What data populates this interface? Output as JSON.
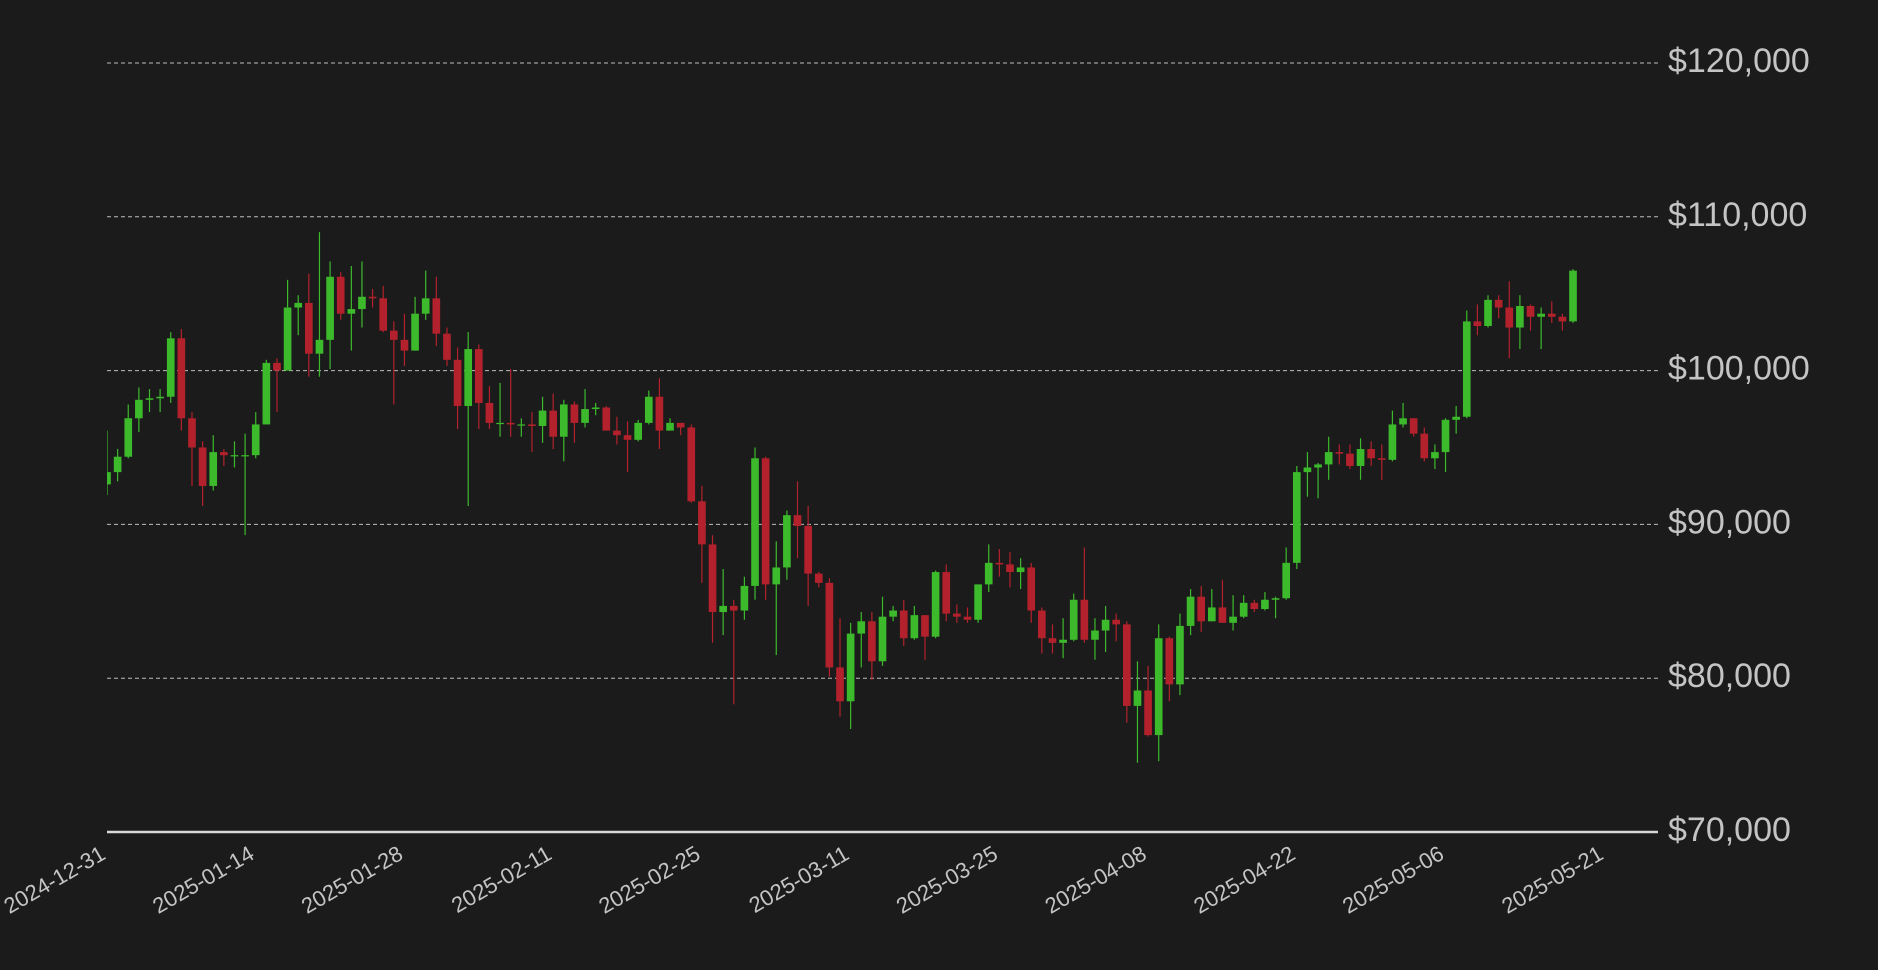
{
  "chart_data": {
    "type": "candlestick",
    "x": [
      "2024-12-31",
      "2025-01-01",
      "2025-01-02",
      "2025-01-03",
      "2025-01-04",
      "2025-01-05",
      "2025-01-06",
      "2025-01-07",
      "2025-01-08",
      "2025-01-09",
      "2025-01-10",
      "2025-01-11",
      "2025-01-12",
      "2025-01-13",
      "2025-01-14",
      "2025-01-15",
      "2025-01-16",
      "2025-01-17",
      "2025-01-18",
      "2025-01-19",
      "2025-01-20",
      "2025-01-21",
      "2025-01-22",
      "2025-01-23",
      "2025-01-24",
      "2025-01-25",
      "2025-01-26",
      "2025-01-27",
      "2025-01-28",
      "2025-01-29",
      "2025-01-30",
      "2025-01-31",
      "2025-02-01",
      "2025-02-02",
      "2025-02-03",
      "2025-02-04",
      "2025-02-05",
      "2025-02-06",
      "2025-02-07",
      "2025-02-08",
      "2025-02-09",
      "2025-02-10",
      "2025-02-11",
      "2025-02-12",
      "2025-02-13",
      "2025-02-14",
      "2025-02-15",
      "2025-02-16",
      "2025-02-17",
      "2025-02-18",
      "2025-02-19",
      "2025-02-20",
      "2025-02-21",
      "2025-02-22",
      "2025-02-23",
      "2025-02-24",
      "2025-02-25",
      "2025-02-26",
      "2025-02-27",
      "2025-02-28",
      "2025-03-01",
      "2025-03-02",
      "2025-03-03",
      "2025-03-04",
      "2025-03-05",
      "2025-03-06",
      "2025-03-07",
      "2025-03-08",
      "2025-03-09",
      "2025-03-10",
      "2025-03-11",
      "2025-03-12",
      "2025-03-13",
      "2025-03-14",
      "2025-03-15",
      "2025-03-16",
      "2025-03-17",
      "2025-03-18",
      "2025-03-19",
      "2025-03-20",
      "2025-03-21",
      "2025-03-22",
      "2025-03-23",
      "2025-03-24",
      "2025-03-25",
      "2025-03-26",
      "2025-03-27",
      "2025-03-28",
      "2025-03-29",
      "2025-03-30",
      "2025-03-31",
      "2025-04-01",
      "2025-04-02",
      "2025-04-03",
      "2025-04-04",
      "2025-04-05",
      "2025-04-06",
      "2025-04-07",
      "2025-04-08",
      "2025-04-09",
      "2025-04-10",
      "2025-04-11",
      "2025-04-12",
      "2025-04-13",
      "2025-04-14",
      "2025-04-15",
      "2025-04-16",
      "2025-04-17",
      "2025-04-18",
      "2025-04-19",
      "2025-04-20",
      "2025-04-21",
      "2025-04-22",
      "2025-04-23",
      "2025-04-24",
      "2025-04-25",
      "2025-04-26",
      "2025-04-27",
      "2025-04-28",
      "2025-04-29",
      "2025-04-30",
      "2025-05-01",
      "2025-05-02",
      "2025-05-03",
      "2025-05-04",
      "2025-05-05",
      "2025-05-06",
      "2025-05-07",
      "2025-05-08",
      "2025-05-09",
      "2025-05-10",
      "2025-05-11",
      "2025-05-12",
      "2025-05-13",
      "2025-05-14",
      "2025-05-15",
      "2025-05-16",
      "2025-05-17",
      "2025-05-18"
    ],
    "open": [
      92600,
      93400,
      94400,
      96900,
      98100,
      98200,
      98300,
      102100,
      96900,
      95000,
      92500,
      94700,
      94500,
      94500,
      94500,
      96500,
      100500,
      100000,
      104100,
      104400,
      101100,
      102000,
      106100,
      103700,
      104000,
      104800,
      104700,
      102600,
      102000,
      101300,
      103700,
      104700,
      102400,
      100700,
      97700,
      101400,
      97900,
      96600,
      96600,
      96500,
      96500,
      96400,
      97400,
      95700,
      97800,
      96600,
      97500,
      97600,
      96100,
      95800,
      95500,
      96600,
      98300,
      96100,
      96600,
      96300,
      91500,
      88700,
      84300,
      84700,
      84400,
      86000,
      94300,
      86100,
      87200,
      90600,
      89900,
      86800,
      86200,
      80700,
      78500,
      82900,
      83700,
      81100,
      84000,
      84400,
      82600,
      84100,
      82700,
      86900,
      84200,
      84000,
      83800,
      86100,
      87500,
      87400,
      86900,
      87200,
      84400,
      82600,
      82300,
      82500,
      85100,
      82500,
      83100,
      83800,
      83500,
      78200,
      79200,
      76300,
      82600,
      79600,
      83400,
      85300,
      83700,
      84600,
      83600,
      84000,
      84900,
      84500,
      85100,
      85200,
      87500,
      93400,
      93700,
      93900,
      94700,
      94600,
      93800,
      94900,
      94300,
      94200,
      96500,
      96900,
      95900,
      94300,
      94700,
      96800,
      97000,
      103200,
      102900,
      104600,
      104100,
      102800,
      104200,
      103500,
      103700,
      103500,
      103200
    ],
    "high": [
      96100,
      94900,
      97800,
      98900,
      98800,
      98800,
      102500,
      102700,
      97300,
      95400,
      95800,
      94900,
      95400,
      95900,
      97300,
      100700,
      100800,
      105900,
      104900,
      106300,
      109000,
      107100,
      106400,
      106800,
      107100,
      105300,
      105500,
      103200,
      103700,
      104800,
      106500,
      106100,
      102800,
      101500,
      102500,
      101700,
      99000,
      99200,
      100100,
      96900,
      97300,
      98300,
      98500,
      98100,
      98000,
      98800,
      97900,
      97700,
      97000,
      96700,
      96800,
      98700,
      99500,
      96900,
      96600,
      96500,
      92500,
      89300,
      87100,
      85100,
      86600,
      95000,
      94400,
      88900,
      90900,
      92800,
      91200,
      86900,
      86500,
      83900,
      83600,
      84300,
      84300,
      85300,
      84700,
      85100,
      84700,
      84100,
      87000,
      87400,
      84800,
      84600,
      86000,
      88700,
      88400,
      88200,
      87800,
      87500,
      84600,
      83500,
      83900,
      85500,
      88500,
      83900,
      84700,
      84200,
      83700,
      81100,
      80800,
      83500,
      82700,
      84200,
      85800,
      86000,
      85800,
      86400,
      85400,
      85400,
      85100,
      85600,
      85300,
      88500,
      93800,
      94700,
      94000,
      95700,
      95200,
      95200,
      95600,
      95400,
      95200,
      97400,
      97900,
      96900,
      96300,
      95200,
      96900,
      97700,
      103900,
      104300,
      104900,
      104900,
      105800,
      104900,
      104300,
      104100,
      104500,
      103700,
      106600
    ],
    "low": [
      91900,
      92800,
      94300,
      96000,
      97300,
      97300,
      97900,
      96100,
      92500,
      91200,
      92200,
      93800,
      93700,
      89300,
      94300,
      96500,
      97300,
      100000,
      102300,
      99600,
      99600,
      100100,
      103300,
      101300,
      102800,
      104100,
      102500,
      97800,
      100300,
      101300,
      103300,
      101600,
      100300,
      96200,
      91200,
      96200,
      96200,
      95700,
      95700,
      95700,
      94700,
      95300,
      94900,
      94100,
      95300,
      96300,
      97100,
      96300,
      95200,
      93400,
      95400,
      96500,
      94900,
      96100,
      95800,
      91400,
      86200,
      82300,
      82800,
      78300,
      83800,
      85100,
      85100,
      81500,
      86400,
      87800,
      84700,
      85900,
      80100,
      77500,
      76700,
      80700,
      79900,
      80800,
      83700,
      82100,
      82500,
      81200,
      82600,
      83700,
      83600,
      83600,
      83600,
      85600,
      86600,
      85900,
      85800,
      83600,
      81600,
      81600,
      81300,
      82400,
      82300,
      81200,
      81700,
      82400,
      77100,
      74500,
      76200,
      74600,
      78500,
      78900,
      82800,
      83000,
      83700,
      83700,
      83100,
      83900,
      84300,
      84400,
      83900,
      85100,
      87100,
      91800,
      91700,
      92900,
      93900,
      93600,
      92900,
      93800,
      92900,
      94100,
      96300,
      95700,
      94100,
      93600,
      93400,
      95900,
      96900,
      102300,
      102800,
      103400,
      100800,
      101400,
      102600,
      101400,
      103100,
      102600,
      103100
    ],
    "close": [
      93400,
      94400,
      96900,
      98100,
      98200,
      98300,
      102100,
      96900,
      95000,
      92500,
      94700,
      94500,
      94500,
      94500,
      96500,
      100500,
      100000,
      104100,
      104400,
      101100,
      102000,
      106100,
      103700,
      104000,
      104800,
      104700,
      102600,
      102000,
      101300,
      103700,
      104700,
      102400,
      100700,
      97700,
      101400,
      97900,
      96600,
      96600,
      96500,
      96500,
      96400,
      97400,
      95700,
      97800,
      96600,
      97500,
      97600,
      96100,
      95800,
      95500,
      96600,
      98300,
      96100,
      96600,
      96300,
      91500,
      88700,
      84300,
      84700,
      84400,
      86000,
      94300,
      86100,
      87200,
      90600,
      89900,
      86800,
      86200,
      80700,
      78500,
      82900,
      83700,
      81100,
      84000,
      84400,
      82600,
      84100,
      82700,
      86900,
      84200,
      84000,
      83800,
      86100,
      87500,
      87400,
      86900,
      87200,
      84400,
      82600,
      82300,
      82500,
      85100,
      82500,
      83100,
      83800,
      83500,
      78200,
      79200,
      76300,
      82600,
      79600,
      83400,
      85300,
      83700,
      84600,
      83600,
      84000,
      84900,
      84500,
      85100,
      85200,
      87500,
      93400,
      93700,
      93900,
      94700,
      94600,
      93800,
      94900,
      94300,
      94200,
      96500,
      96900,
      95900,
      94300,
      94700,
      96800,
      97000,
      103200,
      102900,
      104600,
      104100,
      102800,
      104200,
      103500,
      103700,
      103500,
      103200,
      106500
    ],
    "up_color": "#3cba2c",
    "down_color": "#b3222c",
    "xlim": [
      "2024-12-31",
      "2025-05-26"
    ],
    "xticks": [
      "2024-12-31",
      "2025-01-14",
      "2025-01-28",
      "2025-02-11",
      "2025-02-25",
      "2025-03-11",
      "2025-03-25",
      "2025-04-08",
      "2025-04-22",
      "2025-05-06",
      "2025-05-21"
    ],
    "ylim": [
      70000,
      120000
    ],
    "yticks": [
      {
        "value": 70000,
        "label": "$70,000"
      },
      {
        "value": 80000,
        "label": "$80,000"
      },
      {
        "value": 90000,
        "label": "$90,000"
      },
      {
        "value": 100000,
        "label": "$100,000"
      },
      {
        "value": 110000,
        "label": "$110,000"
      },
      {
        "value": 120000,
        "label": "$120,000"
      }
    ],
    "grid": true
  }
}
